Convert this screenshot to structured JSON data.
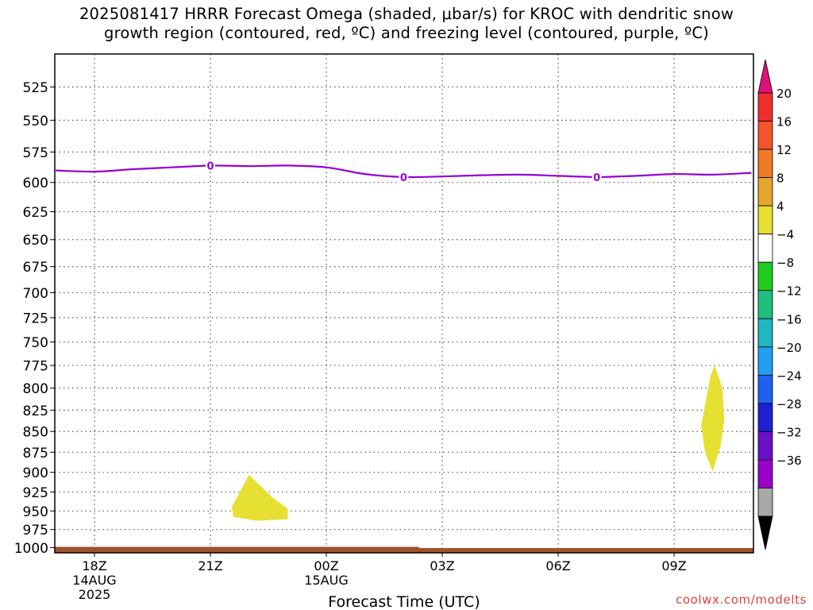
{
  "title": {
    "line1": "2025081417 HRRR Forecast Omega (shaded, μbar/s) for KROC with dendritic snow",
    "line2": "growth region (contoured, red, ºC) and freezing level (contoured, purple, ºC)"
  },
  "credit": "coolwx.com/modelts",
  "chart_data": {
    "type": "contour",
    "xlabel": "Forecast Time (UTC)",
    "ylabel": "",
    "x_range_hours_since_18Z_14AUG": [
      -1,
      17
    ],
    "y_scale": "log-pressure",
    "ylim": [
      1000,
      500
    ],
    "y_ticks": [
      525,
      550,
      575,
      600,
      625,
      650,
      675,
      700,
      725,
      750,
      775,
      800,
      825,
      850,
      875,
      900,
      925,
      950,
      975,
      1000
    ],
    "x_ticks": [
      {
        "h": 0,
        "label": "18Z",
        "sub": [
          "14AUG",
          "2025"
        ]
      },
      {
        "h": 3,
        "label": "21Z",
        "sub": []
      },
      {
        "h": 6,
        "label": "00Z",
        "sub": [
          "15AUG"
        ]
      },
      {
        "h": 9,
        "label": "03Z",
        "sub": []
      },
      {
        "h": 12,
        "label": "06Z",
        "sub": []
      },
      {
        "h": 15,
        "label": "09Z",
        "sub": []
      }
    ],
    "grid": true,
    "freezing_level": {
      "color": "#9400d3",
      "label": "0",
      "label_at_h": [
        3,
        8,
        13
      ],
      "points": [
        {
          "h": -1,
          "p": 590
        },
        {
          "h": 0,
          "p": 591
        },
        {
          "h": 1,
          "p": 589
        },
        {
          "h": 2,
          "p": 587.5
        },
        {
          "h": 3,
          "p": 586
        },
        {
          "h": 4,
          "p": 586.5
        },
        {
          "h": 5,
          "p": 586
        },
        {
          "h": 6,
          "p": 587.5
        },
        {
          "h": 7,
          "p": 593
        },
        {
          "h": 8,
          "p": 595.5
        },
        {
          "h": 9,
          "p": 595
        },
        {
          "h": 10,
          "p": 594
        },
        {
          "h": 11,
          "p": 593.5
        },
        {
          "h": 12,
          "p": 594.5
        },
        {
          "h": 13,
          "p": 595.5
        },
        {
          "h": 14,
          "p": 594.5
        },
        {
          "h": 15,
          "p": 593
        },
        {
          "h": 16,
          "p": 593.5
        },
        {
          "h": 17,
          "p": 592
        }
      ]
    },
    "shaded_regions": [
      {
        "name": "omega 4-8 area near 22Z",
        "color": "#e6e033",
        "points": [
          [
            3.55,
            945
          ],
          [
            4.0,
            903
          ],
          [
            4.6,
            932
          ],
          [
            5.0,
            947
          ],
          [
            5.0,
            961
          ],
          [
            4.2,
            963
          ],
          [
            3.6,
            958
          ]
        ]
      },
      {
        "name": "omega 4-8 area near 10Z",
        "color": "#e6e033",
        "points": [
          [
            15.7,
            843
          ],
          [
            15.95,
            785
          ],
          [
            16.05,
            775
          ],
          [
            16.25,
            800
          ],
          [
            16.3,
            835
          ],
          [
            16.2,
            868
          ],
          [
            16.0,
            899
          ],
          [
            15.8,
            875
          ]
        ]
      }
    ],
    "ground": {
      "color": "#a0522d",
      "thickness_px": 6,
      "step_at_h": 8.4
    },
    "colorbar": {
      "labels": [
        "20",
        "16",
        "12",
        "8",
        "4",
        "−4",
        "−8",
        "−12",
        "−16",
        "−20",
        "−24",
        "−28",
        "−32",
        "−36"
      ],
      "colors": [
        "#ef2e2e",
        "#f2552b",
        "#ef7b26",
        "#e7a52b",
        "#e6e033",
        "#ffffff",
        "#1fcc1f",
        "#1fbf80",
        "#1fb8c0",
        "#1fa0f0",
        "#1f60f0",
        "#1f20d0",
        "#6a10c8",
        "#9a00c8",
        "#a8a8a8"
      ],
      "over_color": "#e0107a",
      "under_color": "#000000"
    }
  }
}
